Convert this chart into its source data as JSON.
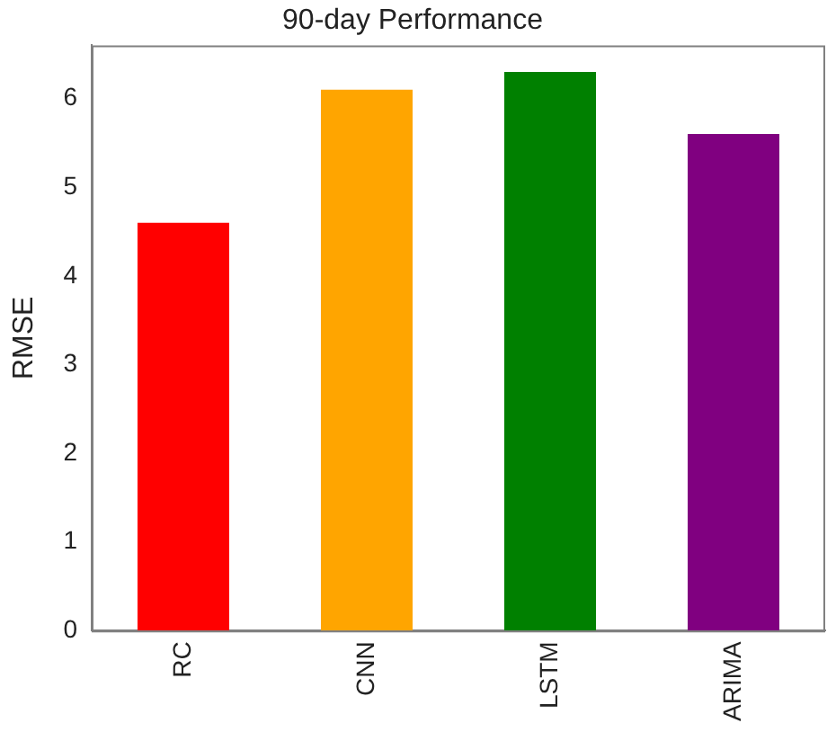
{
  "chart_data": {
    "type": "bar",
    "title": "90-day Performance",
    "ylabel": "RMSE",
    "categories": [
      "RC",
      "CNN",
      "LSTM",
      "ARIMA"
    ],
    "values": [
      4.6,
      6.1,
      6.3,
      5.6
    ],
    "colors": [
      "#ff0000",
      "#ffa500",
      "#008000",
      "#800080"
    ],
    "ylim": [
      0,
      6.6
    ],
    "yticks": [
      0,
      1,
      2,
      3,
      4,
      5,
      6
    ],
    "grid": false,
    "legend": false
  }
}
